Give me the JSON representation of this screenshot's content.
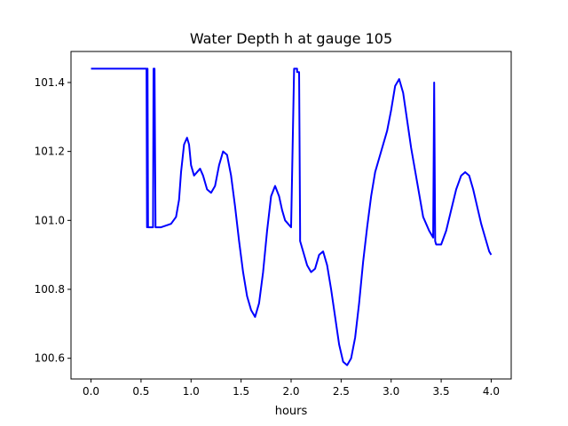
{
  "chart_data": {
    "type": "line",
    "title": "Water Depth h at gauge 105",
    "xlabel": "hours",
    "ylabel": "",
    "xlim": [
      -0.2,
      4.2
    ],
    "ylim": [
      100.54,
      101.49
    ],
    "xticks": [
      0.0,
      0.5,
      1.0,
      1.5,
      2.0,
      2.5,
      3.0,
      3.5,
      4.0
    ],
    "xtick_labels": [
      "0.0",
      "0.5",
      "1.0",
      "1.5",
      "2.0",
      "2.5",
      "3.0",
      "3.5",
      "4.0"
    ],
    "yticks": [
      100.6,
      100.8,
      101.0,
      101.2,
      101.4
    ],
    "ytick_labels": [
      "100.6",
      "100.8",
      "101.0",
      "101.2",
      "101.4"
    ],
    "grid": false,
    "series": [
      {
        "color": "#0000ff",
        "x": [
          0.0,
          0.3,
          0.55,
          0.555,
          0.56,
          0.565,
          0.57,
          0.575,
          0.62,
          0.625,
          0.635,
          0.645,
          0.65,
          0.7,
          0.8,
          0.85,
          0.88,
          0.9,
          0.93,
          0.96,
          0.98,
          1.0,
          1.03,
          1.06,
          1.09,
          1.12,
          1.16,
          1.2,
          1.24,
          1.28,
          1.32,
          1.36,
          1.4,
          1.44,
          1.48,
          1.52,
          1.56,
          1.6,
          1.64,
          1.68,
          1.72,
          1.76,
          1.8,
          1.84,
          1.88,
          1.91,
          1.94,
          1.97,
          2.0,
          2.03,
          2.06,
          2.06,
          2.08,
          2.09,
          2.09,
          2.12,
          2.16,
          2.2,
          2.24,
          2.28,
          2.32,
          2.36,
          2.4,
          2.44,
          2.48,
          2.52,
          2.56,
          2.6,
          2.64,
          2.68,
          2.72,
          2.76,
          2.8,
          2.84,
          2.9,
          2.96,
          3.0,
          3.04,
          3.08,
          3.12,
          3.16,
          3.2,
          3.26,
          3.32,
          3.38,
          3.42,
          3.43,
          3.43,
          3.44,
          3.45,
          3.47,
          3.5,
          3.55,
          3.6,
          3.65,
          3.7,
          3.74,
          3.78,
          3.82,
          3.86,
          3.9,
          3.94,
          3.98,
          4.0
        ],
        "y": [
          101.44,
          101.44,
          101.44,
          101.44,
          100.98,
          101.44,
          100.98,
          100.98,
          100.98,
          101.44,
          101.44,
          100.98,
          100.98,
          100.98,
          100.99,
          101.01,
          101.06,
          101.14,
          101.22,
          101.24,
          101.22,
          101.16,
          101.13,
          101.14,
          101.15,
          101.13,
          101.09,
          101.08,
          101.1,
          101.16,
          101.2,
          101.19,
          101.13,
          101.04,
          100.94,
          100.85,
          100.78,
          100.74,
          100.72,
          100.76,
          100.85,
          100.97,
          101.07,
          101.1,
          101.07,
          101.03,
          101.0,
          100.99,
          100.98,
          101.44,
          101.44,
          101.43,
          101.43,
          100.97,
          100.94,
          100.91,
          100.87,
          100.85,
          100.86,
          100.9,
          100.91,
          100.87,
          100.8,
          100.72,
          100.64,
          100.59,
          100.58,
          100.6,
          100.66,
          100.76,
          100.88,
          100.98,
          101.07,
          101.14,
          101.2,
          101.26,
          101.32,
          101.39,
          101.41,
          101.37,
          101.29,
          101.21,
          101.11,
          101.01,
          100.97,
          100.95,
          101.4,
          101.4,
          100.94,
          100.93,
          100.93,
          100.93,
          100.97,
          101.03,
          101.09,
          101.13,
          101.14,
          101.13,
          101.09,
          101.04,
          100.99,
          100.95,
          100.91,
          100.9
        ]
      }
    ]
  }
}
